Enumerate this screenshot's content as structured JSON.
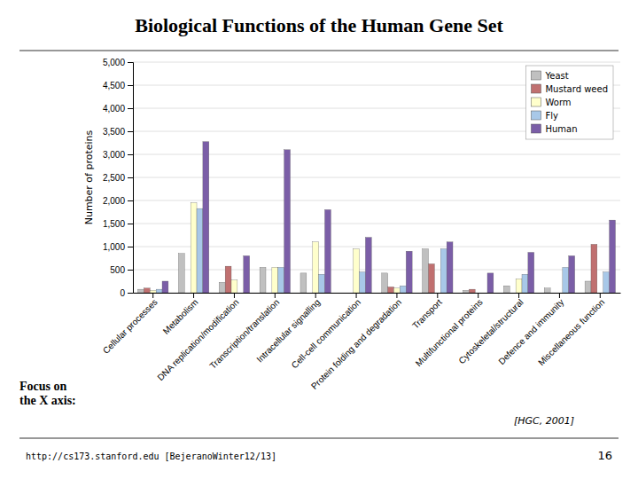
{
  "chart_data": {
    "type": "bar",
    "title": "Biological Functions of the Human Gene Set",
    "y_label": "Number of proteins",
    "categories": [
      "Cellular processes",
      "Metabolism",
      "DNA replication/modification",
      "Transcription/translation",
      "Intracellular signalling",
      "Cell-cell communication",
      "Protein folding and degradation",
      "Transport",
      "Multifunctional proteins",
      "Cytoskeletal/structural",
      "Defence and immunity",
      "Miscellaneous function"
    ],
    "series": [
      {
        "name": "Yeast",
        "color": "#C0C0C0",
        "values": [
          75,
          850,
          225,
          550,
          425,
          0,
          425,
          950,
          50,
          150,
          100,
          250
        ]
      },
      {
        "name": "Mustard weed",
        "color": "#C07070",
        "values": [
          100,
          0,
          575,
          0,
          0,
          0,
          125,
          625,
          75,
          0,
          0,
          1050
        ]
      },
      {
        "name": "Worm",
        "color": "#FFFFCC",
        "values": [
          50,
          1950,
          275,
          550,
          1100,
          950,
          100,
          0,
          0,
          300,
          0,
          0
        ]
      },
      {
        "name": "Fly",
        "color": "#A8C8E8",
        "values": [
          75,
          1825,
          0,
          550,
          400,
          450,
          150,
          950,
          0,
          400,
          550,
          450
        ]
      },
      {
        "name": "Human",
        "color": "#7B5EA7",
        "values": [
          250,
          3275,
          800,
          3100,
          1800,
          1200,
          900,
          1100,
          425,
          875,
          800,
          1575
        ]
      }
    ],
    "ylim": [
      0,
      5000
    ],
    "yticks": [
      0,
      500,
      {
        "value": 1000,
        "label": "1,000"
      },
      {
        "value": 1500,
        "label": "1,500"
      },
      {
        "value": 2000,
        "label": "2,000"
      },
      {
        "value": 2500,
        "label": "2,500"
      },
      {
        "value": 3000,
        "label": "3,000"
      },
      {
        "value": 3500,
        "label": "3,500"
      },
      {
        "value": 4000,
        "label": "4,000"
      },
      {
        "value": 4500,
        "label": "4,500"
      },
      {
        "value": 5000,
        "label": "5,000"
      }
    ],
    "grid": true,
    "legend": "upper right",
    "annotations": [
      "http://cs173.stanford.edu [BejeranoWinter12/13]",
      "16",
      "Focus on\nthe X axis:",
      "[HGC, 2001]"
    ]
  }
}
